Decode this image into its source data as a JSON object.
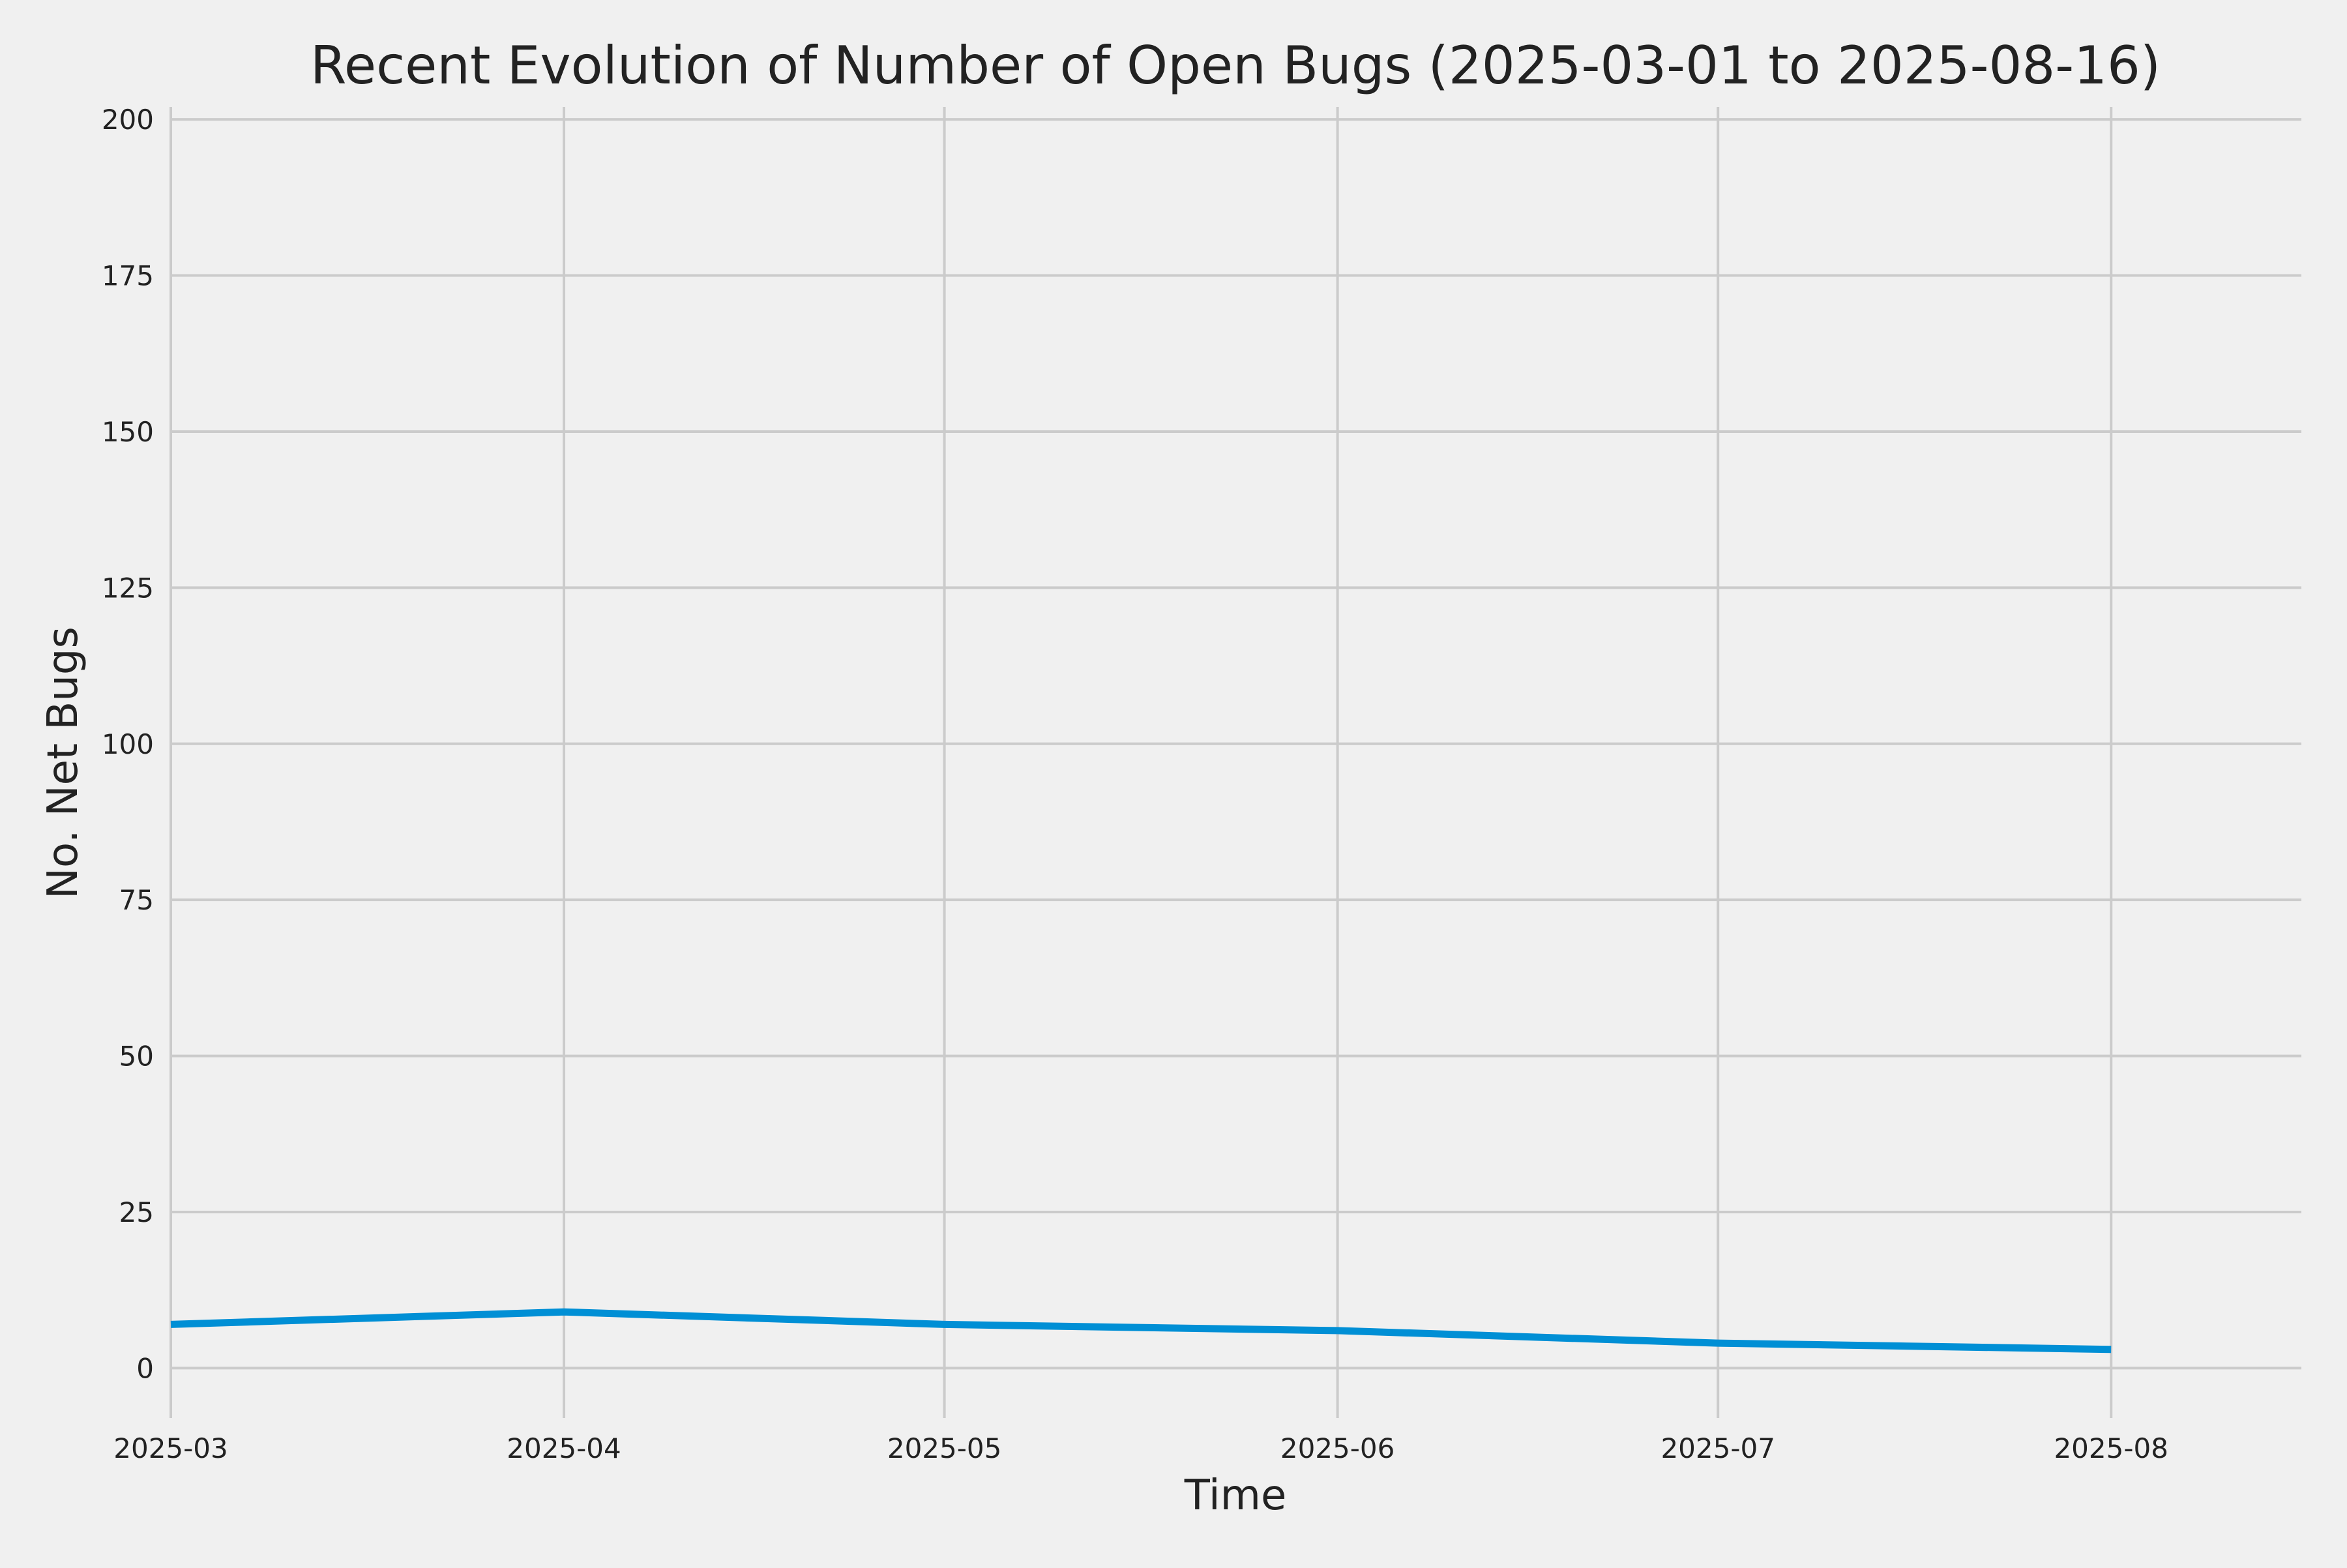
{
  "chart_data": {
    "type": "line",
    "title": "Recent Evolution of Number of Open Bugs (2025-03-01 to 2025-08-16)",
    "xlabel": "Time",
    "ylabel": "No. Net Bugs",
    "x": [
      "2025-03-01",
      "2025-04-01",
      "2025-05-01",
      "2025-06-01",
      "2025-07-01",
      "2025-08-01"
    ],
    "series": [
      {
        "values": [
          7,
          9,
          7,
          6,
          4,
          3
        ],
        "color": "#008fd5"
      }
    ],
    "x_ticks": [
      "2025-03",
      "2025-04",
      "2025-05",
      "2025-06",
      "2025-07",
      "2025-08"
    ],
    "xlim": [
      "2025-03-01",
      "2025-08-16"
    ],
    "y_ticks": [
      0,
      25,
      50,
      75,
      100,
      125,
      150,
      175,
      200
    ],
    "ylim": [
      -8,
      202
    ],
    "grid": true,
    "background_color": "#f0f0f0",
    "grid_color": "#cbcbcb"
  }
}
